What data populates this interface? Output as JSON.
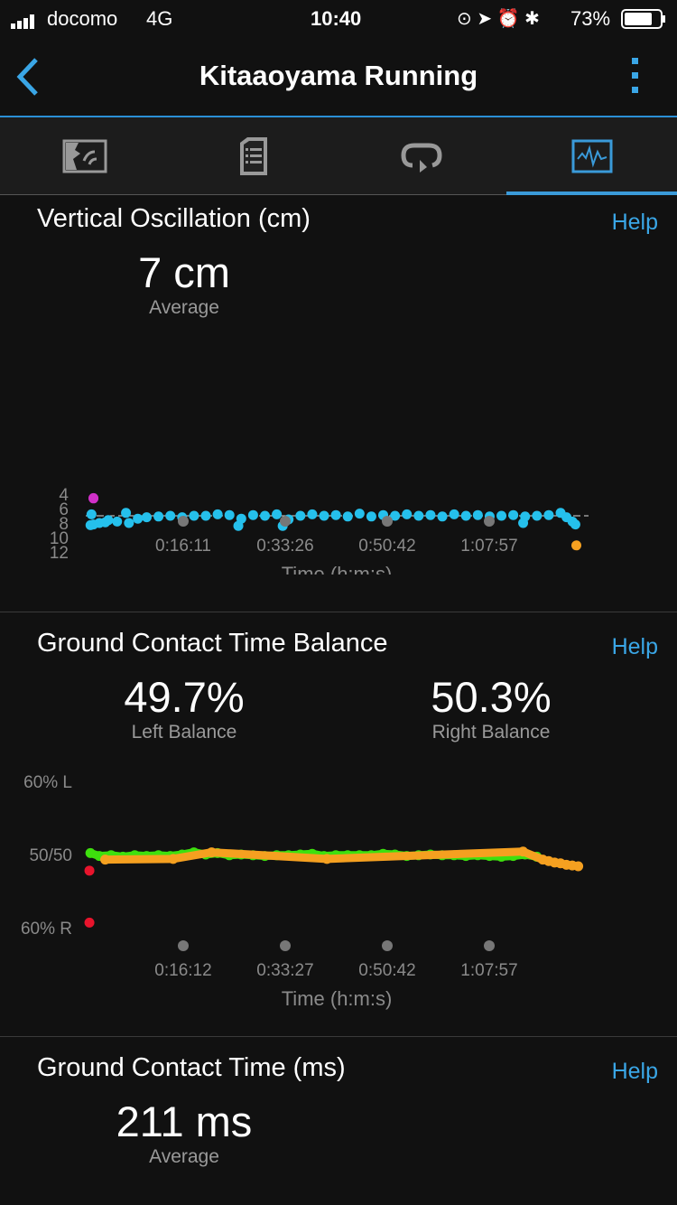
{
  "status_bar": {
    "carrier": "docomo",
    "network": "4G",
    "time": "10:40",
    "battery": "73%"
  },
  "nav": {
    "title": "Kitaaoyama Running",
    "back_icon": "chevron-left-icon",
    "menu_icon": "more-vertical-icon"
  },
  "tabs": [
    {
      "icon": "map-icon"
    },
    {
      "icon": "details-document-icon"
    },
    {
      "icon": "laps-icon"
    },
    {
      "icon": "charts-icon",
      "active": true
    }
  ],
  "colors": {
    "accent": "#3aa6e6",
    "vo_points": "#25c0ec",
    "green": "#3ee00e",
    "orange": "#f5a020",
    "red": "#e8142c",
    "magenta": "#d030c8"
  },
  "vertical_oscillation": {
    "title": "Vertical Oscillation (cm)",
    "help": "Help",
    "value": "7 cm",
    "value_label": "Average"
  },
  "gct_balance": {
    "title": "Ground Contact Time Balance",
    "help": "Help",
    "left_value": "49.7%",
    "left_label": "Left Balance",
    "right_value": "50.3%",
    "right_label": "Right Balance"
  },
  "gct": {
    "title": "Ground Contact Time (ms)",
    "help": "Help",
    "value": "211 ms",
    "value_label": "Average"
  },
  "chart_data": [
    {
      "type": "scatter",
      "ylim": [
        4,
        12
      ],
      "yticks": [
        "12",
        "10",
        "8",
        "6",
        "4"
      ],
      "ytick_values": [
        12,
        10,
        8,
        6,
        4
      ],
      "xticks": [
        "0:16:11",
        "0:33:26",
        "0:50:42",
        "1:07:57"
      ],
      "xlabel": "Time (h:m:s)",
      "average": 7,
      "series": [
        {
          "color": "#25c0ec",
          "points": [
            [
              "0:00:30",
              8.3
            ],
            [
              "0:00:40",
              6.8
            ],
            [
              "0:01:00",
              8.2
            ],
            [
              "0:02:00",
              8.0
            ],
            [
              "0:03:00",
              7.9
            ],
            [
              "0:03:30",
              7.6
            ],
            [
              "0:05:00",
              7.8
            ],
            [
              "0:06:30",
              6.6
            ],
            [
              "0:07:00",
              8.0
            ],
            [
              "0:08:30",
              7.4
            ],
            [
              "0:10:00",
              7.2
            ],
            [
              "0:12:00",
              7.1
            ],
            [
              "0:14:00",
              7.0
            ],
            [
              "0:16:00",
              7.2
            ],
            [
              "0:18:00",
              7.0
            ],
            [
              "0:20:00",
              7.0
            ],
            [
              "0:22:00",
              6.8
            ],
            [
              "0:24:00",
              6.9
            ],
            [
              "0:25:30",
              8.4
            ],
            [
              "0:26:00",
              7.4
            ],
            [
              "0:28:00",
              6.9
            ],
            [
              "0:30:00",
              7.0
            ],
            [
              "0:32:00",
              6.8
            ],
            [
              "0:33:00",
              8.4
            ],
            [
              "0:34:00",
              7.5
            ],
            [
              "0:36:00",
              7.0
            ],
            [
              "0:38:00",
              6.8
            ],
            [
              "0:40:00",
              7.0
            ],
            [
              "0:42:00",
              6.9
            ],
            [
              "0:44:00",
              7.1
            ],
            [
              "0:46:00",
              6.7
            ],
            [
              "0:48:00",
              7.1
            ],
            [
              "0:50:00",
              6.9
            ],
            [
              "0:52:00",
              7.0
            ],
            [
              "0:54:00",
              6.8
            ],
            [
              "0:56:00",
              7.0
            ],
            [
              "0:58:00",
              6.9
            ],
            [
              "1:00:00",
              7.1
            ],
            [
              "1:02:00",
              6.8
            ],
            [
              "1:04:00",
              7.0
            ],
            [
              "1:06:00",
              6.9
            ],
            [
              "1:08:00",
              7.1
            ],
            [
              "1:10:00",
              7.0
            ],
            [
              "1:12:00",
              6.9
            ],
            [
              "1:13:40",
              8.0
            ],
            [
              "1:14:00",
              7.1
            ],
            [
              "1:16:00",
              7.0
            ],
            [
              "1:18:00",
              6.9
            ],
            [
              "1:20:00",
              6.6
            ],
            [
              "1:21:00",
              7.2
            ],
            [
              "1:22:00",
              7.8
            ],
            [
              "1:22:30",
              8.2
            ]
          ]
        },
        {
          "color": "#f5a020",
          "points": [
            [
              "1:22:40",
              11.1
            ]
          ]
        },
        {
          "color": "#d030c8",
          "points": [
            [
              "0:01:00",
              4.6
            ],
            [
              "0:01:00",
              4.3
            ]
          ]
        }
      ]
    },
    {
      "type": "scatter",
      "ylim": [
        40,
        60
      ],
      "yticks": [
        "60% L",
        "50/50",
        "60% R"
      ],
      "ytick_values": [
        60,
        50,
        40
      ],
      "xticks": [
        "0:16:12",
        "0:33:27",
        "0:50:42",
        "1:07:57"
      ],
      "xlabel": "Time (h:m:s)",
      "series": [
        {
          "color": "#3ee00e",
          "points": [
            [
              "0:00:30",
              50.2
            ],
            [
              "0:02:00",
              49.8
            ],
            [
              "0:04:00",
              49.9
            ],
            [
              "0:06:00",
              49.7
            ],
            [
              "0:08:00",
              49.9
            ],
            [
              "0:10:00",
              49.8
            ],
            [
              "0:12:00",
              49.9
            ],
            [
              "0:14:00",
              49.8
            ],
            [
              "0:16:00",
              50.0
            ],
            [
              "0:18:00",
              50.3
            ],
            [
              "0:20:00",
              50.0
            ],
            [
              "0:22:00",
              50.2
            ],
            [
              "0:24:00",
              49.9
            ],
            [
              "0:26:00",
              50.0
            ],
            [
              "0:28:00",
              49.9
            ],
            [
              "0:30:00",
              49.8
            ],
            [
              "0:32:00",
              49.9
            ],
            [
              "0:34:00",
              49.9
            ],
            [
              "0:36:00",
              50.0
            ],
            [
              "0:38:00",
              50.1
            ],
            [
              "0:40:00",
              49.8
            ],
            [
              "0:42:00",
              49.9
            ],
            [
              "0:44:00",
              49.9
            ],
            [
              "0:46:00",
              49.9
            ],
            [
              "0:48:00",
              49.9
            ],
            [
              "0:50:00",
              50.1
            ],
            [
              "0:52:00",
              50.0
            ],
            [
              "0:54:00",
              49.8
            ],
            [
              "0:56:00",
              49.9
            ],
            [
              "0:58:00",
              50.0
            ],
            [
              "1:00:00",
              49.9
            ],
            [
              "1:02:00",
              49.9
            ],
            [
              "1:04:00",
              49.8
            ],
            [
              "1:06:00",
              49.9
            ],
            [
              "1:08:00",
              49.8
            ],
            [
              "1:10:00",
              49.7
            ],
            [
              "1:12:00",
              49.8
            ],
            [
              "1:14:00",
              50.0
            ],
            [
              "1:16:00",
              49.7
            ]
          ]
        },
        {
          "color": "#f5a020",
          "points": [
            [
              "0:03:00",
              49.3
            ],
            [
              "0:14:30",
              49.4
            ],
            [
              "0:21:00",
              50.3
            ],
            [
              "0:40:30",
              49.4
            ],
            [
              "1:13:40",
              50.4
            ],
            [
              "1:17:00",
              49.3
            ],
            [
              "1:18:00",
              49.1
            ],
            [
              "1:19:00",
              48.9
            ],
            [
              "1:20:00",
              48.8
            ],
            [
              "1:21:00",
              48.6
            ],
            [
              "1:22:00",
              48.5
            ],
            [
              "1:23:00",
              48.4
            ]
          ]
        },
        {
          "color": "#e8142c",
          "points": [
            [
              "0:00:20",
              47.8
            ],
            [
              "0:00:20",
              40.7
            ]
          ]
        }
      ]
    }
  ]
}
